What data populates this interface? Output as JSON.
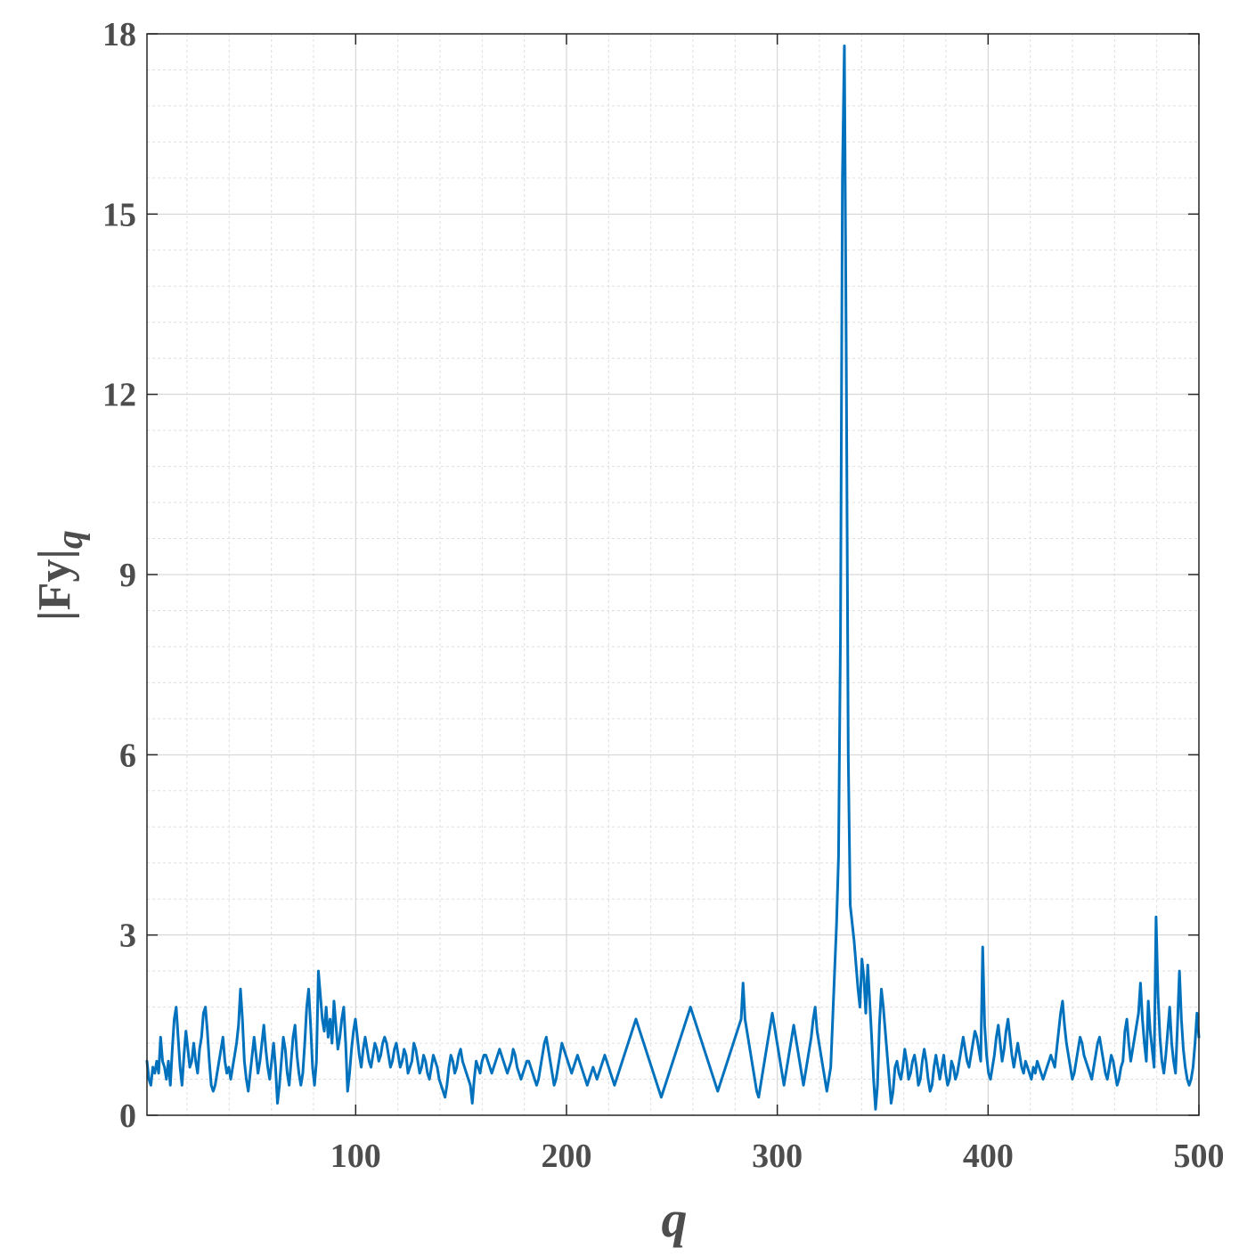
{
  "chart_data": {
    "type": "line",
    "title": "",
    "xlabel": "q",
    "ylabel_main": "|Fy|",
    "ylabel_sub": "q",
    "xlim": [
      1,
      500
    ],
    "ylim": [
      0,
      18
    ],
    "x_ticks": [
      100,
      200,
      300,
      400,
      500
    ],
    "x_tick_labels": [
      "100",
      "200",
      "300",
      "400",
      "500"
    ],
    "y_ticks": [
      0,
      3,
      6,
      9,
      12,
      15,
      18
    ],
    "y_tick_labels": [
      "0",
      "3",
      "6",
      "9",
      "12",
      "15",
      "18"
    ],
    "grid": true,
    "minor_grid": true,
    "colors": {
      "line": "#0072BD",
      "axis": "#262626",
      "text": "#4d4d4d",
      "grid": "#dfdfdf"
    },
    "series": [
      {
        "values": [
          0.9,
          0.6,
          0.5,
          0.8,
          0.7,
          0.9,
          0.7,
          1.3,
          0.9,
          0.8,
          0.6,
          0.9,
          0.5,
          1.1,
          1.6,
          1.8,
          1.3,
          0.8,
          0.5,
          1.0,
          1.4,
          1.1,
          0.8,
          0.9,
          1.2,
          0.9,
          0.7,
          1.1,
          1.3,
          1.7,
          1.8,
          1.4,
          0.9,
          0.5,
          0.4,
          0.5,
          0.7,
          0.9,
          1.1,
          1.3,
          0.9,
          0.7,
          0.8,
          0.6,
          0.8,
          1.0,
          1.2,
          1.5,
          2.1,
          1.6,
          0.9,
          0.6,
          0.4,
          0.7,
          1.0,
          1.3,
          1.0,
          0.7,
          0.9,
          1.2,
          1.5,
          1.1,
          0.8,
          0.6,
          0.9,
          1.2,
          0.8,
          0.2,
          0.5,
          0.9,
          1.3,
          1.1,
          0.7,
          0.5,
          0.9,
          1.3,
          1.5,
          1.0,
          0.7,
          0.5,
          0.7,
          1.2,
          1.8,
          2.1,
          1.5,
          0.8,
          0.5,
          0.9,
          2.4,
          2.0,
          1.6,
          1.4,
          1.8,
          1.3,
          1.6,
          1.2,
          1.9,
          1.5,
          1.1,
          1.3,
          1.6,
          1.8,
          1.2,
          0.4,
          0.7,
          1.1,
          1.4,
          1.6,
          1.3,
          1.0,
          0.8,
          1.1,
          1.3,
          1.1,
          0.9,
          0.8,
          1.0,
          1.2,
          1.1,
          0.9,
          1.0,
          1.2,
          1.3,
          1.2,
          1.0,
          0.8,
          0.9,
          1.1,
          1.2,
          1.0,
          0.8,
          0.9,
          1.1,
          1.0,
          0.7,
          0.8,
          0.9,
          1.2,
          1.1,
          0.9,
          0.7,
          0.8,
          1.0,
          0.9,
          0.7,
          0.6,
          0.8,
          1.0,
          0.9,
          0.8,
          0.6,
          0.5,
          0.4,
          0.3,
          0.5,
          0.8,
          1.0,
          0.9,
          0.7,
          0.8,
          1.0,
          1.1,
          0.9,
          0.8,
          0.7,
          0.6,
          0.5,
          0.2,
          0.6,
          0.9,
          0.8,
          0.7,
          0.9,
          1.0,
          1.0,
          0.9,
          0.8,
          0.7,
          0.8,
          0.9,
          1.0,
          1.1,
          1.0,
          0.9,
          0.8,
          0.7,
          0.8,
          0.9,
          1.1,
          1.0,
          0.8,
          0.7,
          0.6,
          0.7,
          0.8,
          0.9,
          0.9,
          0.8,
          0.7,
          0.6,
          0.5,
          0.6,
          0.8,
          1.0,
          1.2,
          1.3,
          1.1,
          0.9,
          0.7,
          0.5,
          0.6,
          0.8,
          1.0,
          1.2,
          1.1,
          1.0,
          0.9,
          0.8,
          0.7,
          0.8,
          0.9,
          1.0,
          0.9,
          0.8,
          0.7,
          0.6,
          0.5,
          0.6,
          0.7,
          0.8,
          0.7,
          0.6,
          0.7,
          0.8,
          0.9,
          1.0,
          0.9,
          0.8,
          0.7,
          0.6,
          0.5,
          0.6,
          0.7,
          0.8,
          0.9,
          1.0,
          1.1,
          1.2,
          1.3,
          1.4,
          1.5,
          1.6,
          1.5,
          1.4,
          1.3,
          1.2,
          1.1,
          1.0,
          0.9,
          0.8,
          0.7,
          0.6,
          0.5,
          0.4,
          0.3,
          0.4,
          0.5,
          0.6,
          0.7,
          0.8,
          0.9,
          1.0,
          1.1,
          1.2,
          1.3,
          1.4,
          1.5,
          1.6,
          1.7,
          1.8,
          1.7,
          1.6,
          1.5,
          1.4,
          1.3,
          1.2,
          1.1,
          1.0,
          0.9,
          0.8,
          0.7,
          0.6,
          0.5,
          0.4,
          0.5,
          0.6,
          0.7,
          0.8,
          0.9,
          1.0,
          1.1,
          1.2,
          1.3,
          1.4,
          1.5,
          1.6,
          2.2,
          1.6,
          1.4,
          1.2,
          1.0,
          0.8,
          0.6,
          0.4,
          0.3,
          0.5,
          0.7,
          0.9,
          1.1,
          1.3,
          1.5,
          1.7,
          1.5,
          1.3,
          1.1,
          0.9,
          0.7,
          0.5,
          0.7,
          0.9,
          1.1,
          1.3,
          1.5,
          1.3,
          1.1,
          0.9,
          0.7,
          0.5,
          0.7,
          0.9,
          1.1,
          1.3,
          1.6,
          1.8,
          1.4,
          1.2,
          1.0,
          0.8,
          0.6,
          0.4,
          0.6,
          0.8,
          1.6,
          2.4,
          3.2,
          4.3,
          8.0,
          15.6,
          17.8,
          12.4,
          6.0,
          3.5,
          3.2,
          2.9,
          2.5,
          2.1,
          1.8,
          2.6,
          2.3,
          1.7,
          2.5,
          1.9,
          1.3,
          0.6,
          0.1,
          0.5,
          1.5,
          2.1,
          1.8,
          1.4,
          1.0,
          0.6,
          0.2,
          0.4,
          0.8,
          0.9,
          0.7,
          0.6,
          0.8,
          1.1,
          0.9,
          0.6,
          0.7,
          0.9,
          1.0,
          0.8,
          0.5,
          0.6,
          0.9,
          1.1,
          0.9,
          0.6,
          0.4,
          0.5,
          0.8,
          1.0,
          0.8,
          0.6,
          0.8,
          1.0,
          0.7,
          0.5,
          0.6,
          0.9,
          0.8,
          0.6,
          0.7,
          0.9,
          1.1,
          1.3,
          1.1,
          0.9,
          0.8,
          1.0,
          1.2,
          1.4,
          1.3,
          1.1,
          0.9,
          2.8,
          1.5,
          1.0,
          0.7,
          0.6,
          0.8,
          1.0,
          1.3,
          1.5,
          1.2,
          0.9,
          1.1,
          1.4,
          1.6,
          1.3,
          1.0,
          0.8,
          1.0,
          1.2,
          1.0,
          0.8,
          0.7,
          0.9,
          0.8,
          0.7,
          0.6,
          0.8,
          0.7,
          0.9,
          0.8,
          0.7,
          0.6,
          0.7,
          0.8,
          0.9,
          1.0,
          0.9,
          0.8,
          1.1,
          1.4,
          1.7,
          1.9,
          1.5,
          1.2,
          1.0,
          0.8,
          0.6,
          0.7,
          0.9,
          1.1,
          1.3,
          1.2,
          1.0,
          0.9,
          0.8,
          0.7,
          0.6,
          0.8,
          1.0,
          1.2,
          1.3,
          1.1,
          0.9,
          0.7,
          0.6,
          0.8,
          1.0,
          0.9,
          0.7,
          0.5,
          0.6,
          0.8,
          0.9,
          1.4,
          1.6,
          1.2,
          0.9,
          1.1,
          1.3,
          1.5,
          1.7,
          2.2,
          1.6,
          1.2,
          0.9,
          1.9,
          1.4,
          1.1,
          0.8,
          3.3,
          2.0,
          1.3,
          0.9,
          0.7,
          1.0,
          1.4,
          1.8,
          1.2,
          0.9,
          0.7,
          1.5,
          2.4,
          1.6,
          1.1,
          0.8,
          0.6,
          0.5,
          0.6,
          0.8,
          1.2,
          1.7,
          1.3
        ]
      }
    ]
  }
}
